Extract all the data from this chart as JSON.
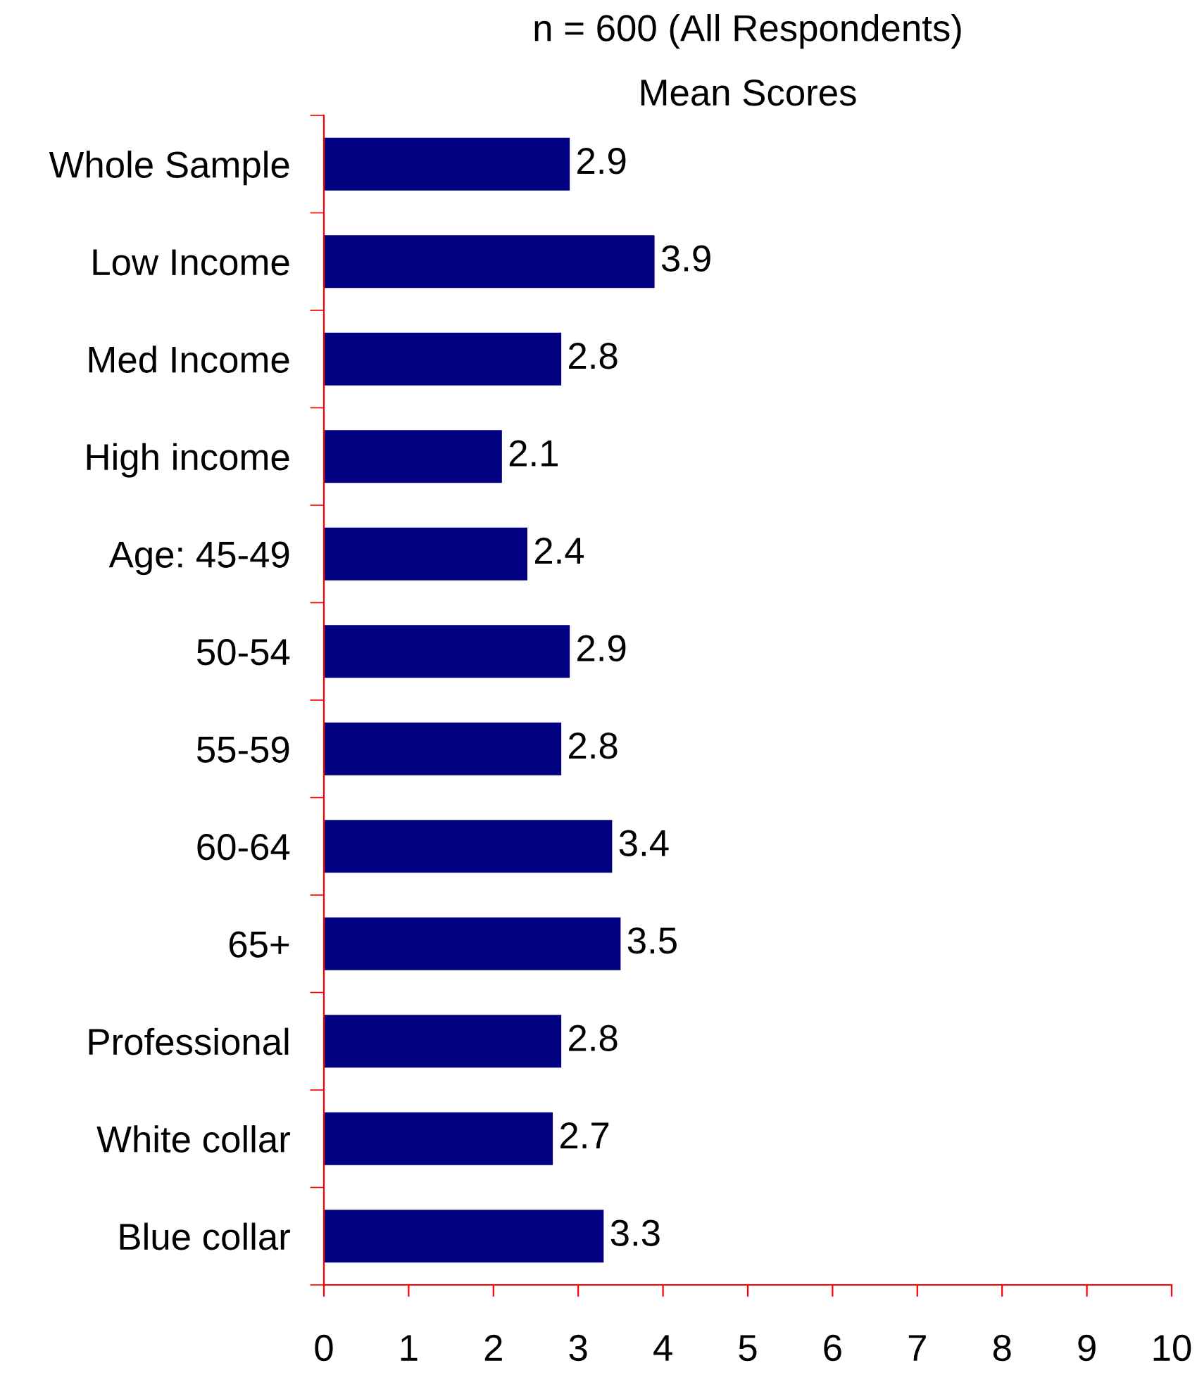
{
  "chart_data": {
    "type": "bar",
    "orientation": "horizontal",
    "title": "n = 600 (All Respondents)",
    "subtitle": "Mean Scores",
    "categories": [
      "Whole Sample",
      "Low Income",
      "Med Income",
      "High income",
      "Age: 45-49",
      "50-54",
      "55-59",
      "60-64",
      "65+",
      "Professional",
      "White collar",
      "Blue collar"
    ],
    "values": [
      2.9,
      3.9,
      2.8,
      2.1,
      2.4,
      2.9,
      2.8,
      3.4,
      3.5,
      2.8,
      2.7,
      3.3
    ],
    "color": "#000080",
    "xlim": [
      0,
      10
    ],
    "xticks": [
      0,
      1,
      2,
      3,
      4,
      5,
      6,
      7,
      8,
      9,
      10
    ],
    "data_labels": true,
    "grid": false
  }
}
